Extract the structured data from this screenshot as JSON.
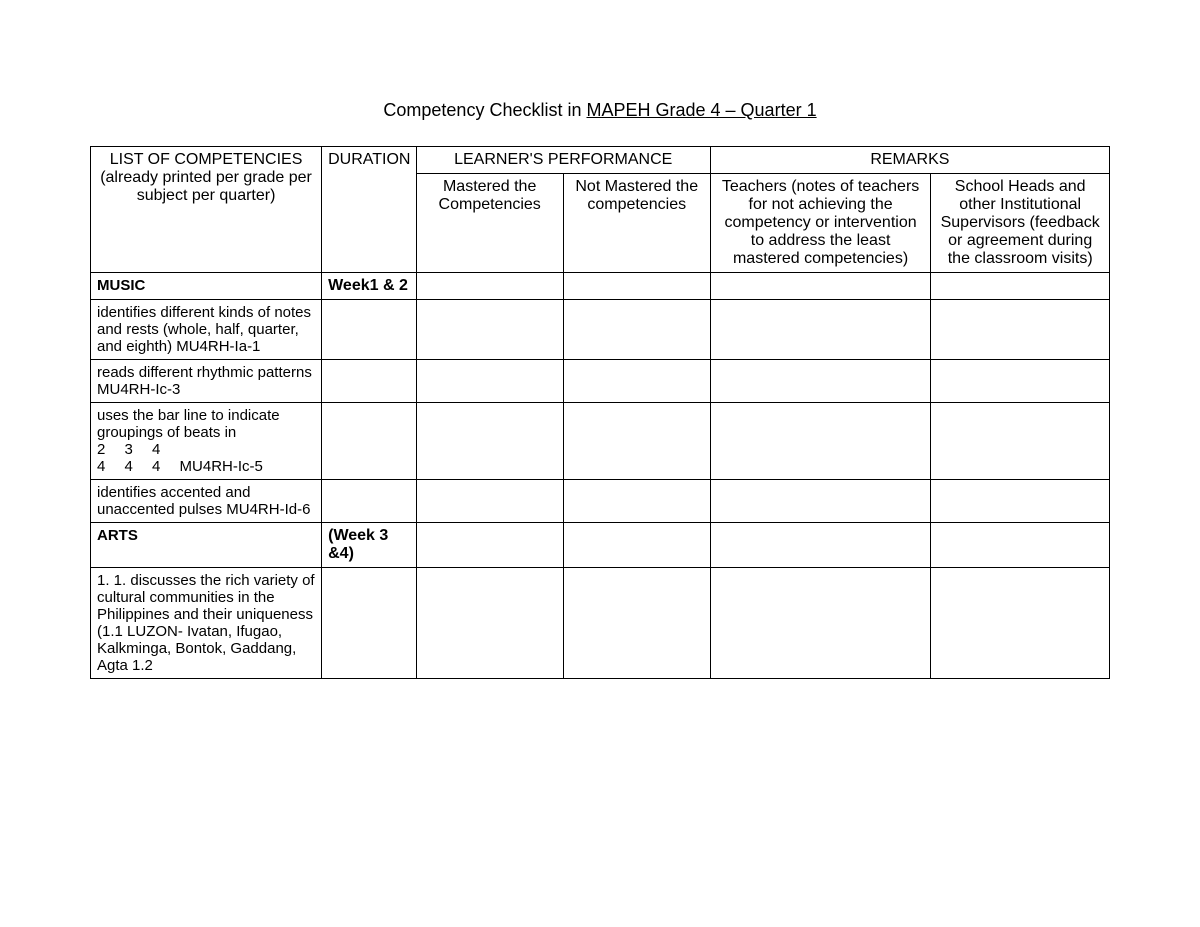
{
  "title_prefix": "Competency Checklist in ",
  "title_underline": "MAPEH Grade 4 – Quarter 1",
  "headers": {
    "competencies": "LIST OF COMPETENCIES (already printed per grade per subject per quarter)",
    "duration": "DURATION",
    "learners_perf": "LEARNER'S PERFORMANCE",
    "remarks": "REMARKS",
    "mastered": "Mastered the Competencies",
    "not_mastered": "Not Mastered the competencies",
    "teachers": "Teachers (notes of teachers for not achieving the competency or intervention to address the least mastered competencies)",
    "school_heads": "School Heads and other Institutional Supervisors (feedback or agreement during the classroom visits)"
  },
  "rows": [
    {
      "competency": "MUSIC",
      "duration": "Week1 & 2",
      "bold": true
    },
    {
      "competency": "identifies different kinds of notes and rests (whole, half, quarter, and eighth) MU4RH-Ia-1",
      "duration": ""
    },
    {
      "competency": "reads different rhythmic patterns MU4RH-Ic-3",
      "duration": ""
    },
    {
      "competency": "uses the bar line to indicate groupings of beats in\n2  3  4\n4  4  4  MU4RH-Ic-5",
      "duration": ""
    },
    {
      "competency": "identifies accented and unaccented pulses MU4RH-Id-6",
      "duration": ""
    },
    {
      "competency": "ARTS",
      "duration": "(Week 3 &4)",
      "bold": true
    },
    {
      "competency": "1. 1. discusses the rich variety of cultural communities in the Philippines and their uniqueness (1.1 LUZON- Ivatan, Ifugao, Kalkminga, Bontok, Gaddang, Agta 1.2",
      "duration": ""
    }
  ]
}
